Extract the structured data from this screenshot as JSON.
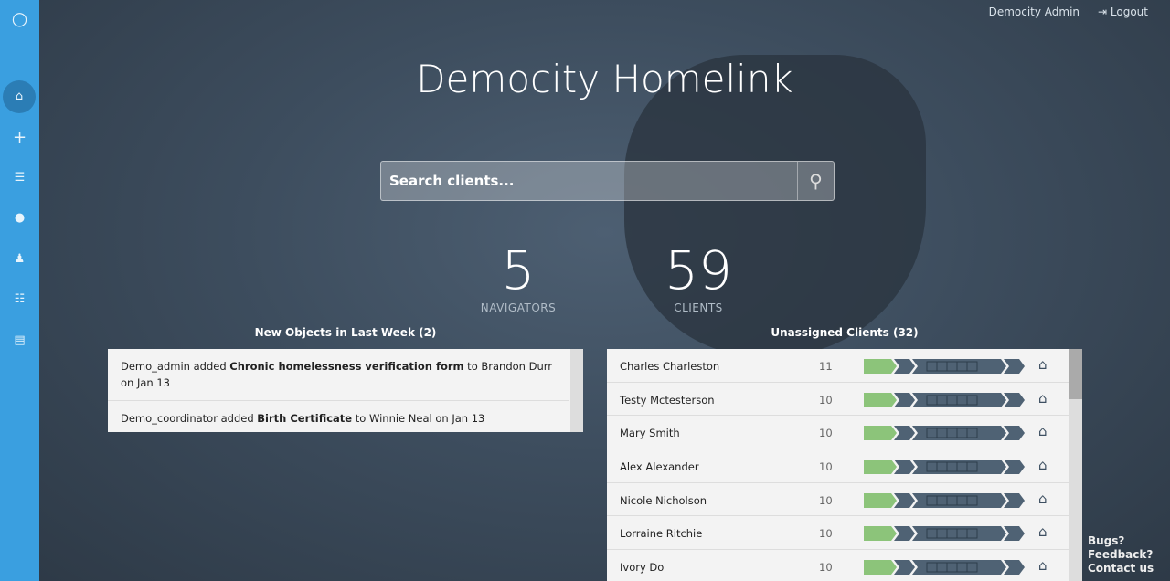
{
  "header": {
    "user": "Democity Admin",
    "logout": "Logout"
  },
  "title": "Democity Homelink",
  "search": {
    "placeholder": "Search clients..."
  },
  "stats": [
    {
      "value": "5",
      "label": "NAVIGATORS"
    },
    {
      "value": "59",
      "label": "CLIENTS"
    }
  ],
  "new_objects": {
    "title": "New Objects in Last Week (2)",
    "items": [
      {
        "user": "Demo_admin added ",
        "object": "Chronic homelessness verification form",
        "rest": " to Brandon Durr on Jan 13"
      },
      {
        "user": "Demo_coordinator added ",
        "object": "Birth Certificate",
        "rest": " to Winnie Neal on Jan 13"
      }
    ]
  },
  "unassigned": {
    "title": "Unassigned Clients (32)",
    "rows": [
      {
        "name": "Charles Charleston",
        "count": "11"
      },
      {
        "name": "Testy Mctesterson",
        "count": "10"
      },
      {
        "name": "Mary Smith",
        "count": "10"
      },
      {
        "name": "Alex Alexander",
        "count": "10"
      },
      {
        "name": "Nicole Nicholson",
        "count": "10"
      },
      {
        "name": "Lorraine Ritchie",
        "count": "10"
      },
      {
        "name": "Ivory Do",
        "count": "10"
      }
    ]
  },
  "footer": "Bugs? Feedback? Contact us",
  "colors": {
    "sidebar": "#3a9fe0",
    "progress_done": "#8cc47a",
    "progress_todo": "#4f6274"
  }
}
